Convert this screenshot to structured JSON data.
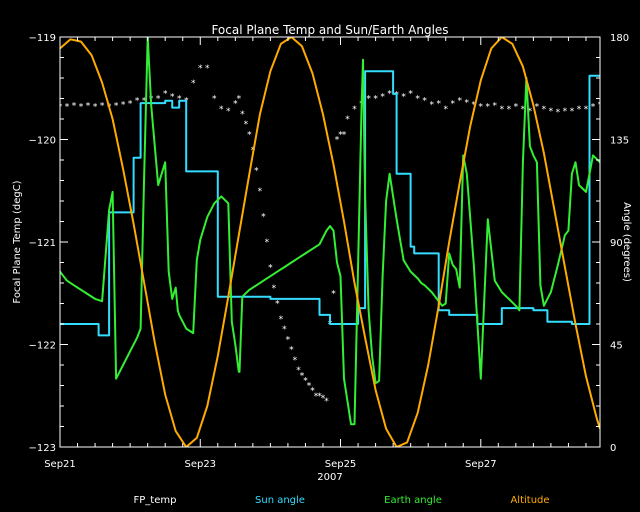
{
  "chart_data": {
    "type": "line",
    "title": "Focal Plane Temp and Sun/Earth Angles",
    "xlabel": "2007",
    "ylabel_left": "Focal Plane Temp (degC)",
    "ylabel_right": "Angle (degrees)",
    "xlim": [
      0,
      7.7
    ],
    "ylim_left": [
      -123,
      -119
    ],
    "ylim_right": [
      0,
      180
    ],
    "x_ticks": [
      {
        "x": 0,
        "label": "Sep21"
      },
      {
        "x": 2,
        "label": "Sep23"
      },
      {
        "x": 4,
        "label": "Sep25"
      },
      {
        "x": 6,
        "label": "Sep27"
      }
    ],
    "y_ticks_left": [
      {
        "v": -123,
        "label": "−123"
      },
      {
        "v": -122,
        "label": "−122"
      },
      {
        "v": -121,
        "label": "−121"
      },
      {
        "v": -120,
        "label": "−120"
      },
      {
        "v": -119,
        "label": "−119"
      }
    ],
    "y_ticks_right": [
      {
        "v": 0,
        "label": "0"
      },
      {
        "v": 45,
        "label": "45"
      },
      {
        "v": 90,
        "label": "90"
      },
      {
        "v": 135,
        "label": "135"
      },
      {
        "v": 180,
        "label": "180"
      }
    ],
    "colors": {
      "background": "#000000",
      "axes": "#ffffff",
      "fp_temp": "#ffffff",
      "sun_angle": "#33ddff",
      "earth_angle": "#33ee33",
      "altitude": "#ffaa00"
    },
    "legend": [
      {
        "label": "FP_temp",
        "color": "#ffffff"
      },
      {
        "label": "Sun angle",
        "color": "#33ddff"
      },
      {
        "label": "Earth angle",
        "color": "#33ee33"
      },
      {
        "label": "Altitude",
        "color": "#ffaa00"
      }
    ],
    "series": [
      {
        "name": "FP_temp",
        "axis": "left",
        "style": "markers",
        "x": [
          0.0,
          0.1,
          0.2,
          0.3,
          0.4,
          0.5,
          0.6,
          0.7,
          0.8,
          0.9,
          1.0,
          1.1,
          1.2,
          1.3,
          1.4,
          1.5,
          1.6,
          1.7,
          1.8,
          1.9,
          2.0,
          2.1,
          2.2,
          2.3,
          2.4,
          2.5,
          2.55,
          2.6,
          2.65,
          2.7,
          2.75,
          2.8,
          2.85,
          2.9,
          2.95,
          3.0,
          3.05,
          3.1,
          3.15,
          3.2,
          3.25,
          3.3,
          3.35,
          3.4,
          3.45,
          3.5,
          3.55,
          3.6,
          3.65,
          3.7,
          3.75,
          3.8,
          3.85,
          3.9,
          3.95,
          4.0,
          4.05,
          4.1,
          4.2,
          4.3,
          4.4,
          4.5,
          4.6,
          4.7,
          4.8,
          4.9,
          5.0,
          5.1,
          5.2,
          5.3,
          5.4,
          5.5,
          5.6,
          5.7,
          5.8,
          5.9,
          6.0,
          6.1,
          6.2,
          6.3,
          6.4,
          6.5,
          6.6,
          6.7,
          6.8,
          6.9,
          7.0,
          7.1,
          7.2,
          7.3,
          7.4,
          7.5,
          7.6,
          7.7
        ],
        "values": [
          -119.68,
          -119.68,
          -119.67,
          -119.68,
          -119.67,
          -119.68,
          -119.67,
          -119.68,
          -119.67,
          -119.66,
          -119.65,
          -119.62,
          -119.62,
          -119.6,
          -119.6,
          -119.55,
          -119.58,
          -119.6,
          -119.62,
          -119.45,
          -119.3,
          -119.3,
          -119.6,
          -119.7,
          -119.72,
          -119.65,
          -119.6,
          -119.75,
          -119.85,
          -119.95,
          -120.1,
          -120.3,
          -120.5,
          -120.75,
          -121.0,
          -121.25,
          -121.45,
          -121.6,
          -121.75,
          -121.85,
          -121.95,
          -122.05,
          -122.15,
          -122.25,
          -122.3,
          -122.35,
          -122.4,
          -122.45,
          -122.5,
          -122.5,
          -122.52,
          -122.55,
          -121.8,
          -121.5,
          -120.0,
          -119.95,
          -119.95,
          -119.8,
          -119.7,
          -119.65,
          -119.6,
          -119.6,
          -119.58,
          -119.55,
          -119.56,
          -119.58,
          -119.55,
          -119.6,
          -119.62,
          -119.66,
          -119.65,
          -119.7,
          -119.65,
          -119.62,
          -119.64,
          -119.66,
          -119.68,
          -119.68,
          -119.67,
          -119.7,
          -119.7,
          -119.68,
          -119.7,
          -119.72,
          -119.68,
          -119.7,
          -119.72,
          -119.73,
          -119.72,
          -119.72,
          -119.7,
          -119.7,
          -119.68,
          -119.66
        ]
      },
      {
        "name": "Sun angle",
        "axis": "right",
        "style": "line",
        "x": [
          0.0,
          0.55,
          0.55,
          0.7,
          0.7,
          1.05,
          1.05,
          1.15,
          1.15,
          1.25,
          1.25,
          1.5,
          1.5,
          1.6,
          1.6,
          1.7,
          1.7,
          1.8,
          1.8,
          2.25,
          2.25,
          3.0,
          3.0,
          3.6,
          3.6,
          3.7,
          3.7,
          3.85,
          3.85,
          4.15,
          4.15,
          4.25,
          4.25,
          4.35,
          4.35,
          4.55,
          4.55,
          4.75,
          4.75,
          4.8,
          4.8,
          5.0,
          5.0,
          5.05,
          5.05,
          5.4,
          5.4,
          5.55,
          5.55,
          5.95,
          5.95,
          6.3,
          6.3,
          6.75,
          6.75,
          6.95,
          6.95,
          7.3,
          7.3,
          7.4,
          7.4,
          7.55,
          7.55,
          7.7
        ],
        "values": [
          54,
          54,
          49,
          49,
          103,
          103,
          127,
          127,
          151,
          151,
          151,
          151,
          152,
          152,
          149,
          149,
          152,
          152,
          121,
          121,
          66,
          66,
          65,
          65,
          65,
          65,
          58,
          58,
          54,
          54,
          54,
          54,
          61,
          61,
          165,
          165,
          165,
          165,
          155,
          155,
          120,
          120,
          88,
          88,
          85,
          85,
          60,
          60,
          58,
          58,
          54,
          54,
          61,
          61,
          60,
          60,
          55,
          55,
          54,
          54,
          54,
          54,
          163,
          163
        ]
      },
      {
        "name": "Earth angle",
        "axis": "right",
        "style": "line",
        "x": [
          0.0,
          0.05,
          0.1,
          0.2,
          0.3,
          0.4,
          0.5,
          0.6,
          0.7,
          0.75,
          0.8,
          0.9,
          1.0,
          1.1,
          1.15,
          1.2,
          1.25,
          1.3,
          1.4,
          1.45,
          1.5,
          1.55,
          1.6,
          1.65,
          1.68,
          1.7,
          1.8,
          1.9,
          1.95,
          2.0,
          2.05,
          2.1,
          2.2,
          2.3,
          2.4,
          2.45,
          2.5,
          2.55,
          2.56,
          2.6,
          2.7,
          2.8,
          2.9,
          3.0,
          3.1,
          3.2,
          3.3,
          3.4,
          3.5,
          3.6,
          3.7,
          3.8,
          3.85,
          3.9,
          3.95,
          4.0,
          4.05,
          4.1,
          4.15,
          4.2,
          4.25,
          4.3,
          4.32,
          4.35,
          4.4,
          4.45,
          4.5,
          4.55,
          4.6,
          4.65,
          4.7,
          4.8,
          4.9,
          5.0,
          5.1,
          5.15,
          5.2,
          5.3,
          5.35,
          5.4,
          5.45,
          5.5,
          5.55,
          5.6,
          5.65,
          5.7,
          5.75,
          5.8,
          5.9,
          6.0,
          6.1,
          6.2,
          6.3,
          6.4,
          6.5,
          6.55,
          6.6,
          6.65,
          6.7,
          6.75,
          6.8,
          6.85,
          6.9,
          7.0,
          7.1,
          7.2,
          7.25,
          7.3,
          7.35,
          7.4,
          7.5,
          7.6,
          7.7
        ],
        "values": [
          77,
          75,
          73,
          71,
          69,
          67,
          65,
          64,
          104,
          112,
          30,
          36,
          42,
          48,
          52,
          120,
          180,
          150,
          115,
          120,
          125,
          77,
          65,
          70,
          60,
          58,
          52,
          50,
          82,
          91,
          96,
          101,
          107,
          110,
          107,
          55,
          45,
          33,
          33,
          66,
          69,
          71,
          73,
          75,
          77,
          79,
          81,
          83,
          85,
          87,
          89,
          95,
          97,
          95,
          81,
          75,
          30,
          20,
          10,
          10,
          80,
          150,
          170,
          110,
          60,
          40,
          28,
          29,
          75,
          108,
          120,
          100,
          82,
          77,
          74,
          72,
          71,
          68,
          66,
          64,
          62,
          63,
          85,
          80,
          78,
          70,
          128,
          120,
          80,
          30,
          100,
          73,
          68,
          65,
          62,
          60,
          125,
          162,
          132,
          128,
          125,
          71,
          62,
          68,
          80,
          93,
          95,
          120,
          125,
          115,
          112,
          128,
          125
        ]
      },
      {
        "name": "Altitude",
        "axis": "right",
        "style": "line",
        "x": [
          0.0,
          0.15,
          0.3,
          0.45,
          0.6,
          0.75,
          0.9,
          1.05,
          1.2,
          1.35,
          1.5,
          1.65,
          1.8,
          1.95,
          2.1,
          2.25,
          2.4,
          2.55,
          2.7,
          2.85,
          3.0,
          3.15,
          3.3,
          3.45,
          3.6,
          3.75,
          3.9,
          4.05,
          4.2,
          4.35,
          4.5,
          4.65,
          4.8,
          4.95,
          5.1,
          5.25,
          5.4,
          5.55,
          5.7,
          5.85,
          6.0,
          6.15,
          6.3,
          6.45,
          6.6,
          6.75,
          6.9,
          7.05,
          7.2,
          7.35,
          7.5,
          7.65,
          7.7
        ],
        "values": [
          175,
          179,
          178,
          172,
          160,
          144,
          122,
          98,
          72,
          46,
          23,
          7,
          0,
          4,
          18,
          40,
          66,
          93,
          120,
          146,
          165,
          177,
          180,
          176,
          164,
          146,
          124,
          99,
          72,
          48,
          25,
          8,
          0,
          2,
          15,
          36,
          62,
          90,
          116,
          141,
          161,
          175,
          180,
          177,
          167,
          150,
          129,
          104,
          79,
          54,
          31,
          13,
          8
        ]
      }
    ]
  }
}
